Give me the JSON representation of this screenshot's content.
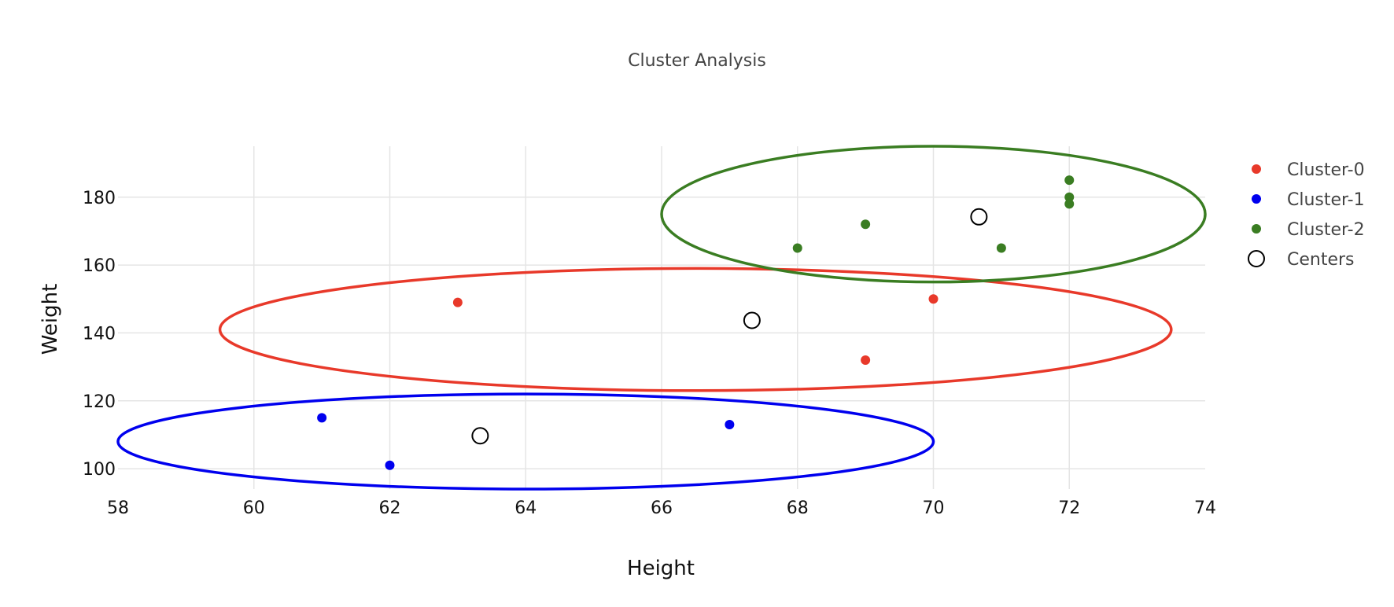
{
  "chart_data": {
    "type": "scatter",
    "title": "Cluster Analysis",
    "xlabel": "Height",
    "ylabel": "Weight",
    "xlim": [
      58,
      74
    ],
    "ylim": [
      94,
      195
    ],
    "x_ticks": [
      58,
      60,
      62,
      64,
      66,
      68,
      70,
      72,
      74
    ],
    "y_ticks": [
      100,
      120,
      140,
      160,
      180
    ],
    "grid": true,
    "legend_position": "top-right",
    "series": [
      {
        "name": "Cluster-0",
        "color": "#e8392a",
        "points": [
          [
            63,
            149
          ],
          [
            70,
            150
          ],
          [
            69,
            132
          ]
        ]
      },
      {
        "name": "Cluster-1",
        "color": "#0000ee",
        "points": [
          [
            61,
            115
          ],
          [
            62,
            101
          ],
          [
            67,
            113
          ]
        ]
      },
      {
        "name": "Cluster-2",
        "color": "#3a7d22",
        "points": [
          [
            68,
            165
          ],
          [
            69,
            172
          ],
          [
            71,
            165
          ],
          [
            72,
            185
          ],
          [
            72,
            180
          ],
          [
            72,
            178
          ]
        ]
      }
    ],
    "centers": {
      "name": "Centers",
      "color": "#000000",
      "points": [
        [
          67.33,
          143.7
        ],
        [
          63.33,
          109.7
        ],
        [
          70.67,
          174.2
        ]
      ]
    },
    "ellipses": [
      {
        "cluster": "Cluster-0",
        "color": "#e8392a",
        "cx": 66.5,
        "cy": 141,
        "rx": 7.0,
        "ry": 18
      },
      {
        "cluster": "Cluster-1",
        "color": "#0000ee",
        "cx": 64.0,
        "cy": 108,
        "rx": 6.0,
        "ry": 14
      },
      {
        "cluster": "Cluster-2",
        "color": "#3a7d22",
        "cx": 70.0,
        "cy": 175,
        "rx": 4.0,
        "ry": 20
      }
    ]
  }
}
